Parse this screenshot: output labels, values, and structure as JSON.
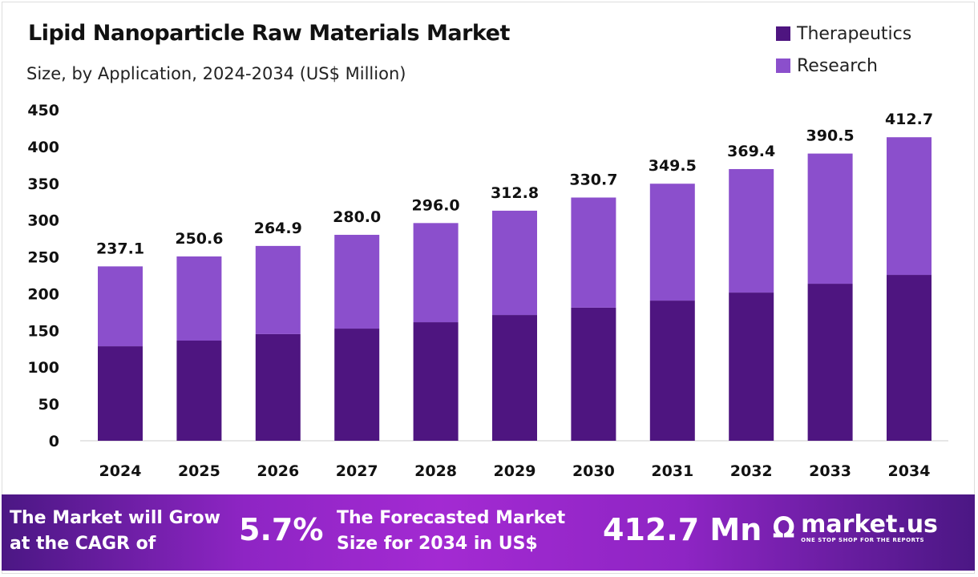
{
  "chart_data": {
    "type": "bar",
    "stacked": true,
    "title": "Lipid Nanoparticle Raw Materials Market",
    "subtitle": "Size, by Application, 2024-2034 (US$ Million)",
    "categories": [
      "2024",
      "2025",
      "2026",
      "2027",
      "2028",
      "2029",
      "2030",
      "2031",
      "2032",
      "2033",
      "2034"
    ],
    "series": [
      {
        "name": "Therapeutics",
        "color": "#4e1580",
        "values": [
          128.5,
          136.2,
          145.0,
          152.5,
          161.2,
          171.0,
          181.0,
          190.6,
          201.5,
          213.5,
          225.5
        ]
      },
      {
        "name": "Research",
        "color": "#8b4fcc",
        "values": [
          108.6,
          114.4,
          119.9,
          127.5,
          134.8,
          141.8,
          149.7,
          158.9,
          167.9,
          177.0,
          187.2
        ]
      }
    ],
    "totals": [
      "237.1",
      "250.6",
      "264.9",
      "280.0",
      "296.0",
      "312.8",
      "330.7",
      "349.5",
      "369.4",
      "390.5",
      "412.7"
    ],
    "yticks": [
      "0",
      "50",
      "100",
      "150",
      "200",
      "250",
      "300",
      "350",
      "400",
      "450"
    ],
    "ylim": [
      0,
      450
    ],
    "grid": false,
    "legend": "top-right"
  },
  "footer": {
    "cagr_label_1": "The Market will Grow",
    "cagr_label_2": "at the CAGR of",
    "cagr_value": "5.7%",
    "forecast_label_1": "The Forecasted Market",
    "forecast_label_2": "Size for 2034 in US$",
    "forecast_value": "412.7 Mn",
    "brand": "market.us",
    "brand_tagline": "ONE STOP SHOP FOR THE REPORTS"
  }
}
